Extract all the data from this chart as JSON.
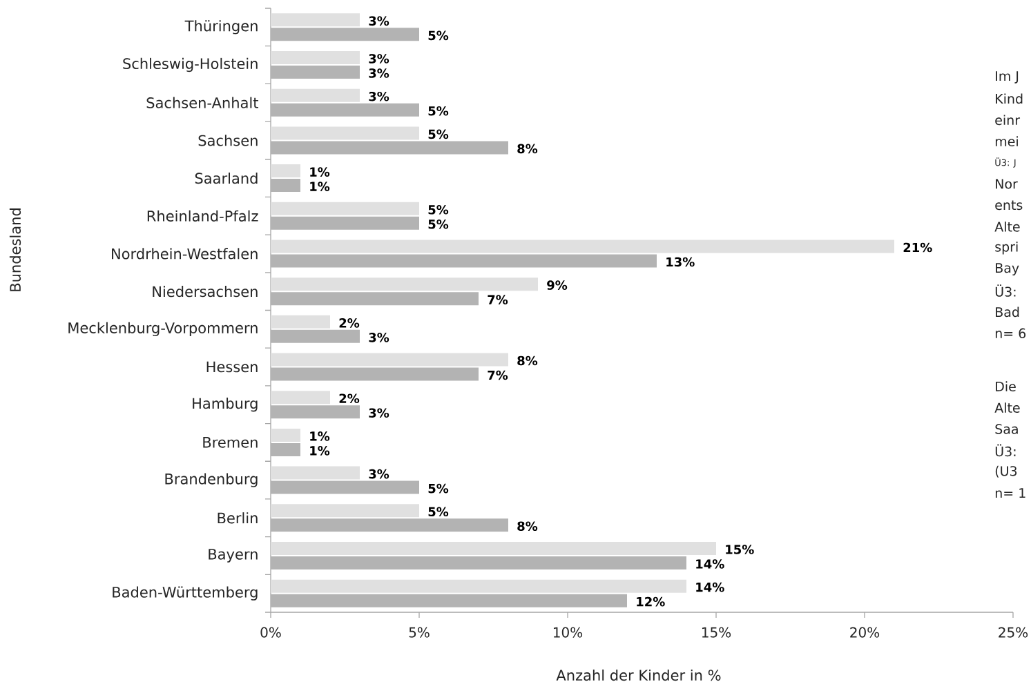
{
  "chart_data": {
    "type": "bar",
    "orientation": "horizontal",
    "xlabel": "Anzahl der Kinder in %",
    "ylabel": "Bundesland",
    "categories": [
      "Thüringen",
      "Schleswig-Holstein",
      "Sachsen-Anhalt",
      "Sachsen",
      "Saarland",
      "Rheinland-Pfalz",
      "Nordrhein-Westfalen",
      "Niedersachsen",
      "Mecklenburg-Vorpommern",
      "Hessen",
      "Hamburg",
      "Bremen",
      "Brandenburg",
      "Berlin",
      "Bayern",
      "Baden-Württemberg"
    ],
    "series": [
      {
        "color": "#e0e0e0",
        "values": [
          3,
          3,
          3,
          5,
          1,
          5,
          21,
          9,
          2,
          8,
          2,
          1,
          3,
          5,
          15,
          14
        ],
        "value_labels": [
          "3%",
          "3%",
          "3%",
          "5%",
          "1%",
          "5%",
          "21%",
          "9%",
          "2%",
          "8%",
          "2%",
          "1%",
          "3%",
          "5%",
          "15%",
          "14%"
        ]
      },
      {
        "color": "#b3b3b3",
        "values": [
          5,
          3,
          5,
          8,
          1,
          5,
          13,
          7,
          3,
          7,
          3,
          1,
          5,
          8,
          14,
          12
        ],
        "value_labels": [
          "5%",
          "3%",
          "5%",
          "8%",
          "1%",
          "5%",
          "13%",
          "7%",
          "3%",
          "7%",
          "3%",
          "1%",
          "5%",
          "8%",
          "14%",
          "12%"
        ]
      }
    ],
    "xlim": [
      0,
      25
    ],
    "xticks": [
      {
        "value": 0,
        "label": "0%"
      },
      {
        "value": 5,
        "label": "5%"
      },
      {
        "value": 10,
        "label": "10%"
      },
      {
        "value": 15,
        "label": "15%"
      },
      {
        "value": 20,
        "label": "20%"
      },
      {
        "value": 25,
        "label": "25%"
      }
    ],
    "annotations": [
      "Im J",
      "Kind",
      "einr",
      "mei",
      "Ü3: J",
      "Nor",
      "ents",
      "Alte",
      "spri",
      "Bay",
      "Ü3:",
      "Bad",
      "n= 6",
      "Die",
      "Alte",
      "Saa",
      "Ü3:",
      "(U3",
      "n= 1"
    ]
  }
}
